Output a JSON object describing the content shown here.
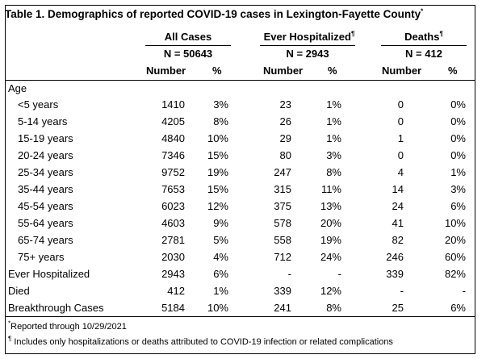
{
  "table": {
    "title": "Table 1. Demographics of reported COVID-19 cases in Lexington-Fayette County",
    "title_mark": "*",
    "groups": [
      {
        "label": "All Cases",
        "mark": "",
        "n": "N = 50643"
      },
      {
        "label": "Ever Hospitalized",
        "mark": "¶",
        "n": "N = 2943"
      },
      {
        "label": "Deaths",
        "mark": "¶",
        "n": "N = 412"
      }
    ],
    "col_headers": [
      "Number",
      "%",
      "Number",
      "%",
      "Number",
      "%"
    ],
    "section_label": "Age",
    "rows": [
      {
        "label": "<5 years",
        "cells": [
          "1410",
          "3%",
          "23",
          "1%",
          "0",
          "0%"
        ]
      },
      {
        "label": "5-14 years",
        "cells": [
          "4205",
          "8%",
          "26",
          "1%",
          "0",
          "0%"
        ]
      },
      {
        "label": "15-19 years",
        "cells": [
          "4840",
          "10%",
          "29",
          "1%",
          "1",
          "0%"
        ]
      },
      {
        "label": "20-24 years",
        "cells": [
          "7346",
          "15%",
          "80",
          "3%",
          "0",
          "0%"
        ]
      },
      {
        "label": "25-34 years",
        "cells": [
          "9752",
          "19%",
          "247",
          "8%",
          "4",
          "1%"
        ]
      },
      {
        "label": "35-44 years",
        "cells": [
          "7653",
          "15%",
          "315",
          "11%",
          "14",
          "3%"
        ]
      },
      {
        "label": "45-54 years",
        "cells": [
          "6023",
          "12%",
          "375",
          "13%",
          "24",
          "6%"
        ]
      },
      {
        "label": "55-64 years",
        "cells": [
          "4603",
          "9%",
          "578",
          "20%",
          "41",
          "10%"
        ]
      },
      {
        "label": "65-74 years",
        "cells": [
          "2781",
          "5%",
          "558",
          "19%",
          "82",
          "20%"
        ]
      },
      {
        "label": "75+ years",
        "cells": [
          "2030",
          "4%",
          "712",
          "24%",
          "246",
          "60%"
        ]
      }
    ],
    "summary_rows": [
      {
        "label": "Ever Hospitalized",
        "cells": [
          "2943",
          "6%",
          "-",
          "-",
          "339",
          "82%"
        ]
      },
      {
        "label": "Died",
        "cells": [
          "412",
          "1%",
          "339",
          "12%",
          "-",
          "-"
        ]
      },
      {
        "label": "Breakthrough Cases",
        "cells": [
          "5184",
          "10%",
          "241",
          "8%",
          "25",
          "6%"
        ]
      }
    ]
  },
  "footnotes": [
    {
      "mark": "*",
      "text": "Reported through 10/29/2021"
    },
    {
      "mark": "¶",
      "text": " Includes only hospitalizations or deaths attributed to COVID-19 infection or related complications"
    }
  ]
}
